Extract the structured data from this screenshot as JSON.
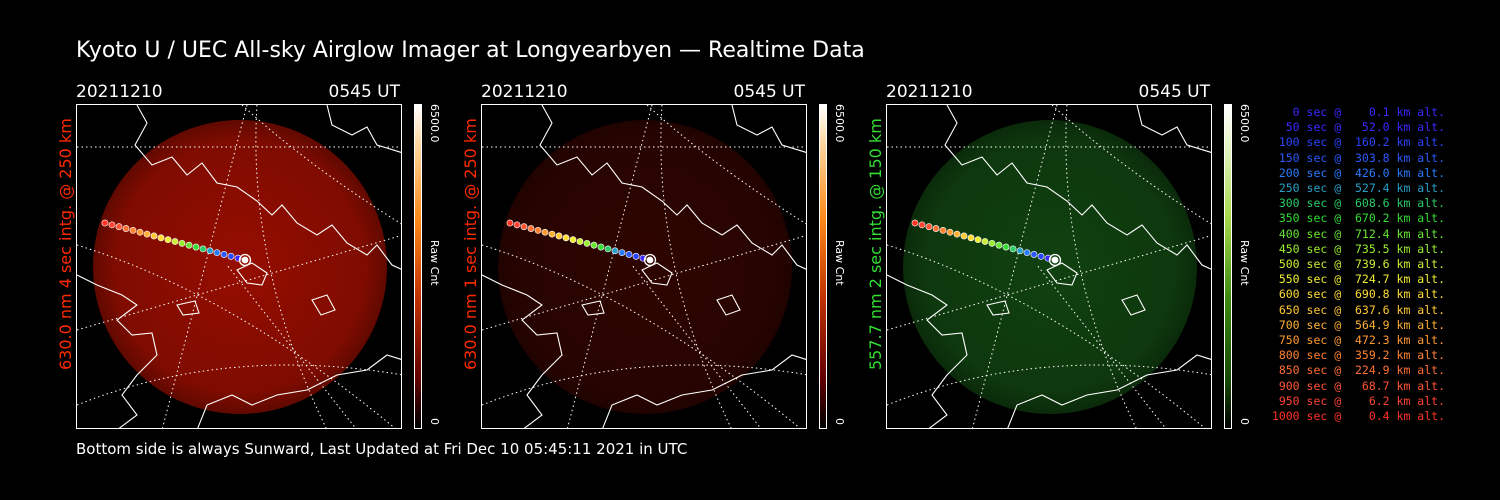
{
  "page": {
    "title": "Kyoto U / UEC All-sky Airglow Imager at Longyearbyen — Realtime Data",
    "footer": "Bottom side is always Sunward, Last Updated at Fri Dec 10 05:45:11 2021 in UTC"
  },
  "panels": [
    {
      "date": "20211210",
      "time": "0545 UT",
      "ylabel": "630.0 nm 4 sec intg. @ 250 km",
      "label_color": "#ff2a00",
      "glow_color": "#b01000",
      "glow_opacity": 0.85,
      "cbar_max": "6500.0",
      "cbar_min": "0",
      "cbar_unit": "Raw Cnt"
    },
    {
      "date": "20211210",
      "time": "0545 UT",
      "ylabel": "630.0 nm 1 sec intg. @ 250 km",
      "label_color": "#ff2a00",
      "glow_color": "#3a0500",
      "glow_opacity": 0.8,
      "cbar_max": "6500.0",
      "cbar_min": "0",
      "cbar_unit": "Raw Cnt"
    },
    {
      "date": "20211210",
      "time": "0545 UT",
      "ylabel": "557.7 nm 2 sec intg. @ 150 km",
      "label_color": "#33dd33",
      "glow_color": "#134d13",
      "glow_opacity": 0.85,
      "cbar_max": "6500.0",
      "cbar_min": "0",
      "cbar_unit": "Raw Cnt"
    }
  ],
  "legend": [
    {
      "text": "   0 sec @    0.1 km alt.",
      "color": "#3a2aff"
    },
    {
      "text": "  50 sec @   52.0 km alt.",
      "color": "#3a2aff"
    },
    {
      "text": " 100 sec @  160.2 km alt.",
      "color": "#2a44ff"
    },
    {
      "text": " 150 sec @  303.8 km alt.",
      "color": "#2a5aff"
    },
    {
      "text": " 200 sec @  426.0 km alt.",
      "color": "#2a7aff"
    },
    {
      "text": " 250 sec @  527.4 km alt.",
      "color": "#2aa0c8"
    },
    {
      "text": " 300 sec @  608.6 km alt.",
      "color": "#2acc66"
    },
    {
      "text": " 350 sec @  670.2 km alt.",
      "color": "#33dd33"
    },
    {
      "text": " 400 sec @  712.4 km alt.",
      "color": "#66e633"
    },
    {
      "text": " 450 sec @  735.5 km alt.",
      "color": "#99ee33"
    },
    {
      "text": " 500 sec @  739.6 km alt.",
      "color": "#ccee33"
    },
    {
      "text": " 550 sec @  724.7 km alt.",
      "color": "#eeee33"
    },
    {
      "text": " 600 sec @  690.8 km alt.",
      "color": "#ffdd33"
    },
    {
      "text": " 650 sec @  637.6 km alt.",
      "color": "#ffc833"
    },
    {
      "text": " 700 sec @  564.9 km alt.",
      "color": "#ffb033"
    },
    {
      "text": " 750 sec @  472.3 km alt.",
      "color": "#ff9a33"
    },
    {
      "text": " 800 sec @  359.2 km alt.",
      "color": "#ff8433"
    },
    {
      "text": " 850 sec @  224.9 km alt.",
      "color": "#ff6e33"
    },
    {
      "text": " 900 sec @   68.7 km alt.",
      "color": "#ff5533"
    },
    {
      "text": " 950 sec @    6.2 km alt.",
      "color": "#ff4433"
    },
    {
      "text": "1000 sec @    0.4 km alt.",
      "color": "#ff3322"
    }
  ]
}
